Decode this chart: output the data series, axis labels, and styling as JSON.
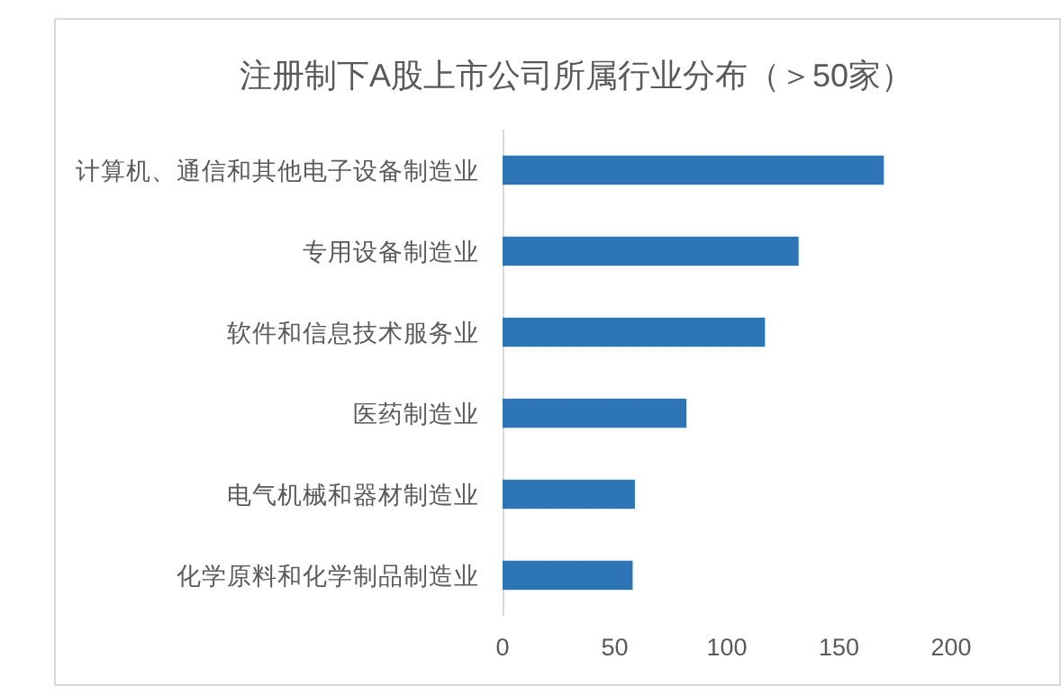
{
  "chart_data": {
    "type": "bar",
    "title": "注册制下A股上市公司所属行业分布（＞50家）",
    "orientation": "horizontal",
    "categories": [
      "计算机、通信和其他电子设备制造业",
      "专用设备制造业",
      "软件和信息技术服务业",
      "医药制造业",
      "电气机械和器材制造业",
      "化学原料和化学制品制造业"
    ],
    "series": [
      {
        "color": "#2e75b6",
        "values": [
          170,
          132,
          117,
          82,
          59,
          58
        ]
      }
    ],
    "xlim": [
      0,
      200
    ],
    "xticks": [
      0,
      50,
      100,
      150,
      200
    ],
    "grid": false
  }
}
